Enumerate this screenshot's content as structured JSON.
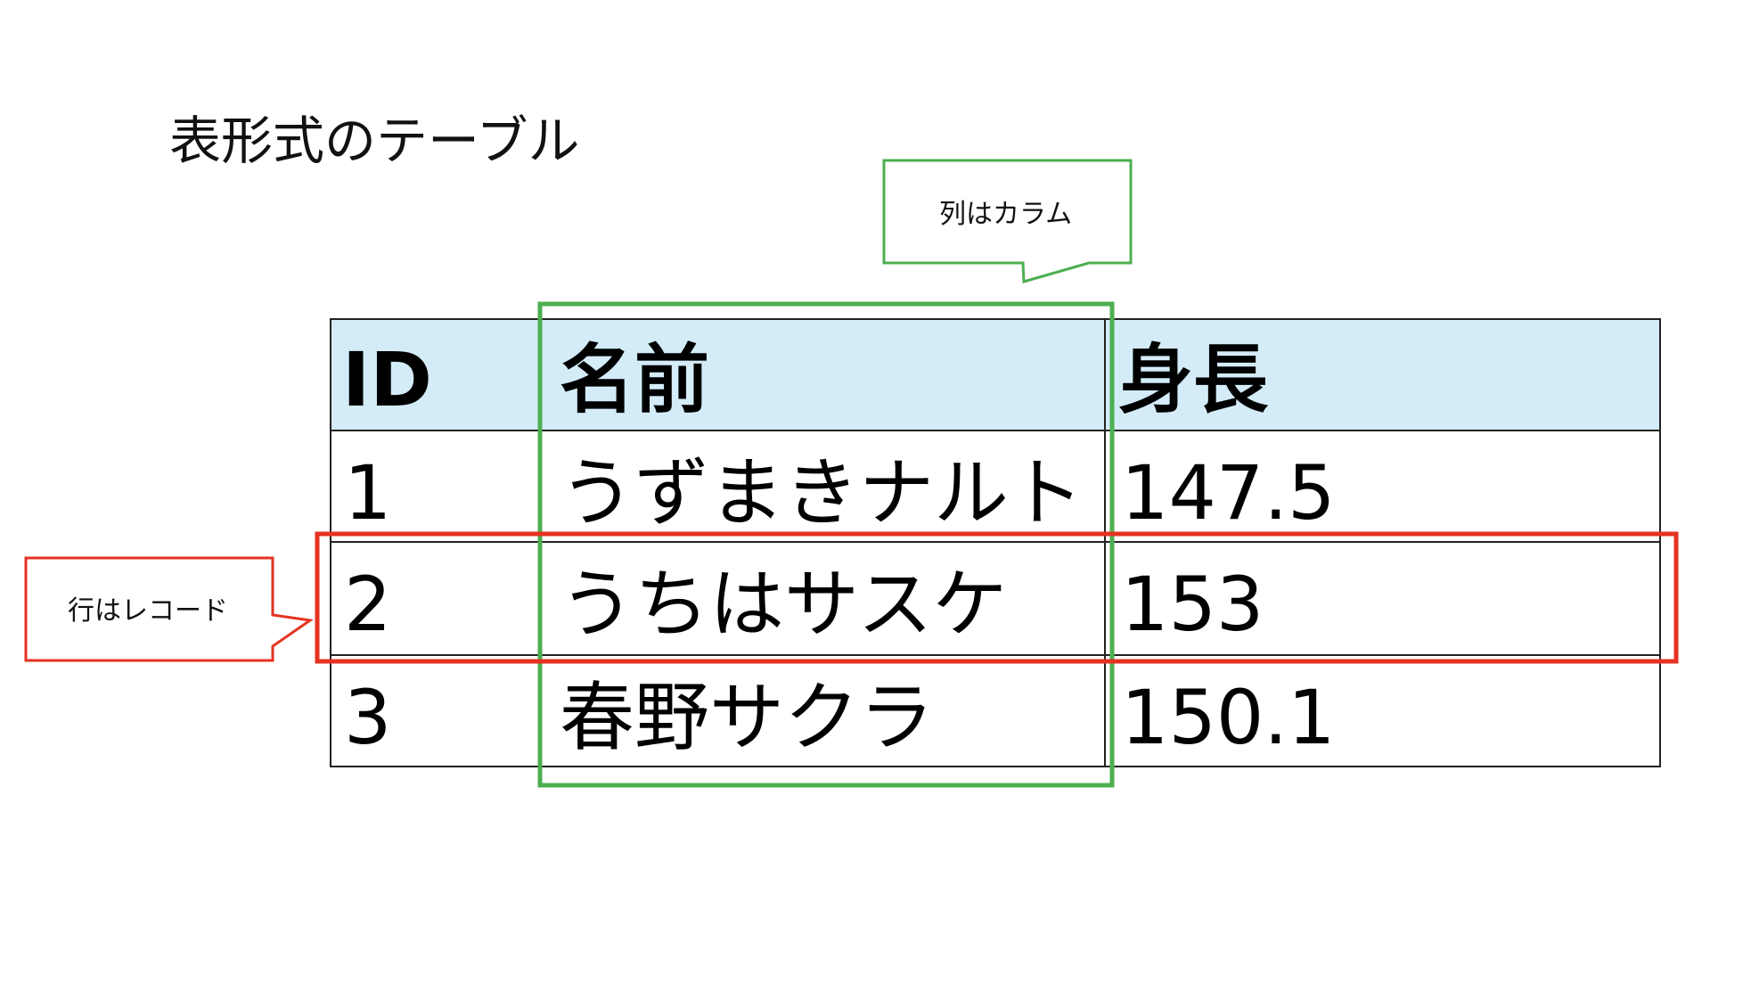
{
  "title": "表形式のテーブル",
  "column_callout": {
    "text": "列はカラム",
    "color": "#4caf50"
  },
  "row_callout": {
    "text": "行はレコード",
    "color": "#e53222"
  },
  "table": {
    "header_bg": "#d3ecf8",
    "headers": [
      "ID",
      "名前",
      "身長"
    ],
    "rows": [
      [
        "1",
        "うずまきナルト",
        "147.5"
      ],
      [
        "2",
        "うちはサスケ",
        "153"
      ],
      [
        "3",
        "春野サクラ",
        "150.1"
      ]
    ]
  }
}
